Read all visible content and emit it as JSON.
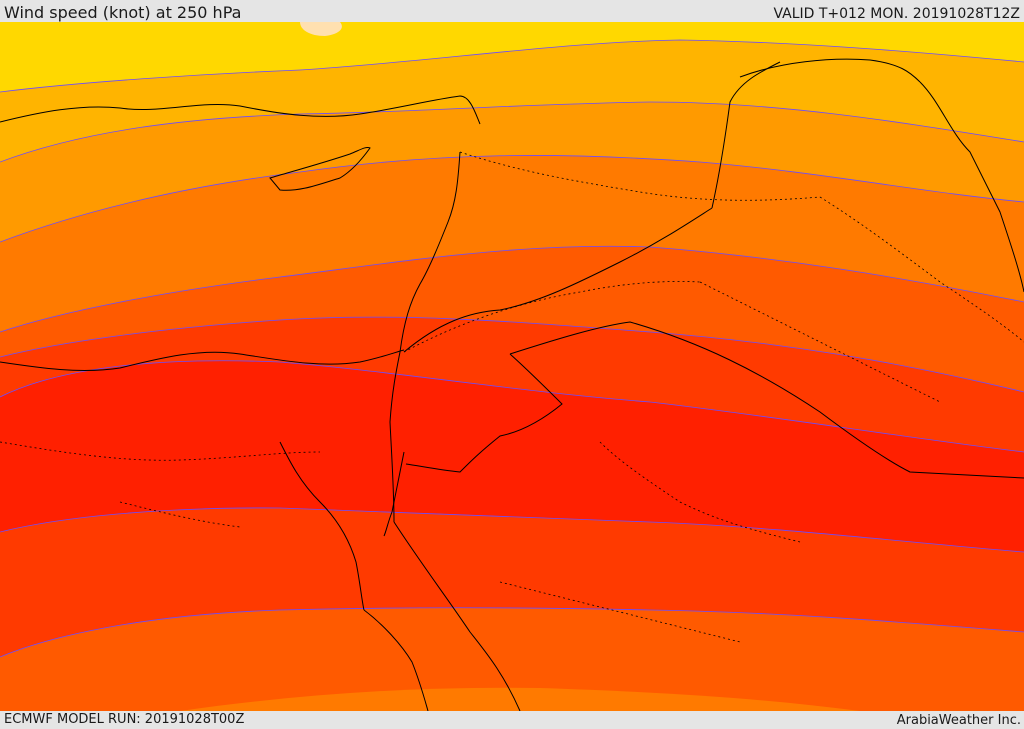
{
  "header": {
    "title": "Wind speed (knot) at 250 hPa",
    "valid_time": "VALID T+012 MON. 20191028T12Z"
  },
  "footer": {
    "model_run": "ECMWF MODEL RUN: 20191028T00Z",
    "credit": "ArabiaWeather Inc."
  },
  "map": {
    "field": "wind speed",
    "level_hpa": 250,
    "units": "knot",
    "region": "Eastern Mediterranean / Middle East",
    "colors": {
      "band_0": "#ffff00",
      "band_1": "#ffd800",
      "band_2": "#ffb400",
      "band_3": "#ff9a00",
      "band_4": "#ff7a00",
      "band_5": "#ff5a00",
      "band_6": "#ff3a00",
      "band_7": "#ff2000",
      "band_8": "#ff1a00",
      "peak": "#ffe0b0",
      "contour": "#6b4cff",
      "coastline": "#000000"
    }
  }
}
